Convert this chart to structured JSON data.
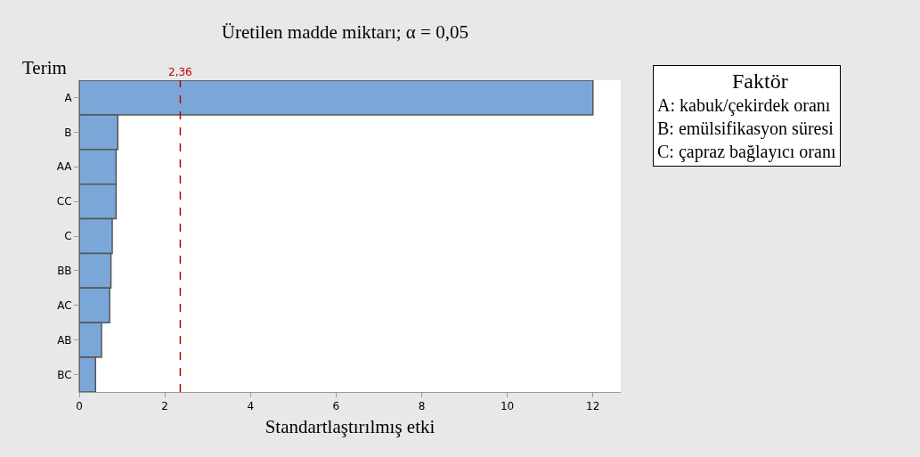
{
  "chart_data": {
    "type": "bar",
    "orientation": "horizontal",
    "title": "Üretilen madde miktarı; α = 0,05",
    "xlabel": "Standartlaştırılmış etki",
    "ylabel": "Terim",
    "categories": [
      "A",
      "B",
      "AA",
      "CC",
      "C",
      "BB",
      "AC",
      "AB",
      "BC"
    ],
    "values": [
      12.0,
      0.9,
      0.86,
      0.86,
      0.77,
      0.74,
      0.71,
      0.52,
      0.38
    ],
    "color": "#7ba7d8",
    "xlim": [
      0,
      12.65
    ],
    "xticks": [
      0,
      2,
      4,
      6,
      8,
      10,
      12
    ],
    "ref_lines": [
      {
        "axis": "x",
        "value": 2.36,
        "label": "2,36",
        "color": "#c00000",
        "line_style": "dashed"
      }
    ],
    "annotations": [
      "Faktör",
      "A: kabuk/çekirdek oranı",
      "B: emülsifikasyon süresi",
      "C: çapraz bağlayıcı oranı"
    ],
    "data_labels": false
  }
}
